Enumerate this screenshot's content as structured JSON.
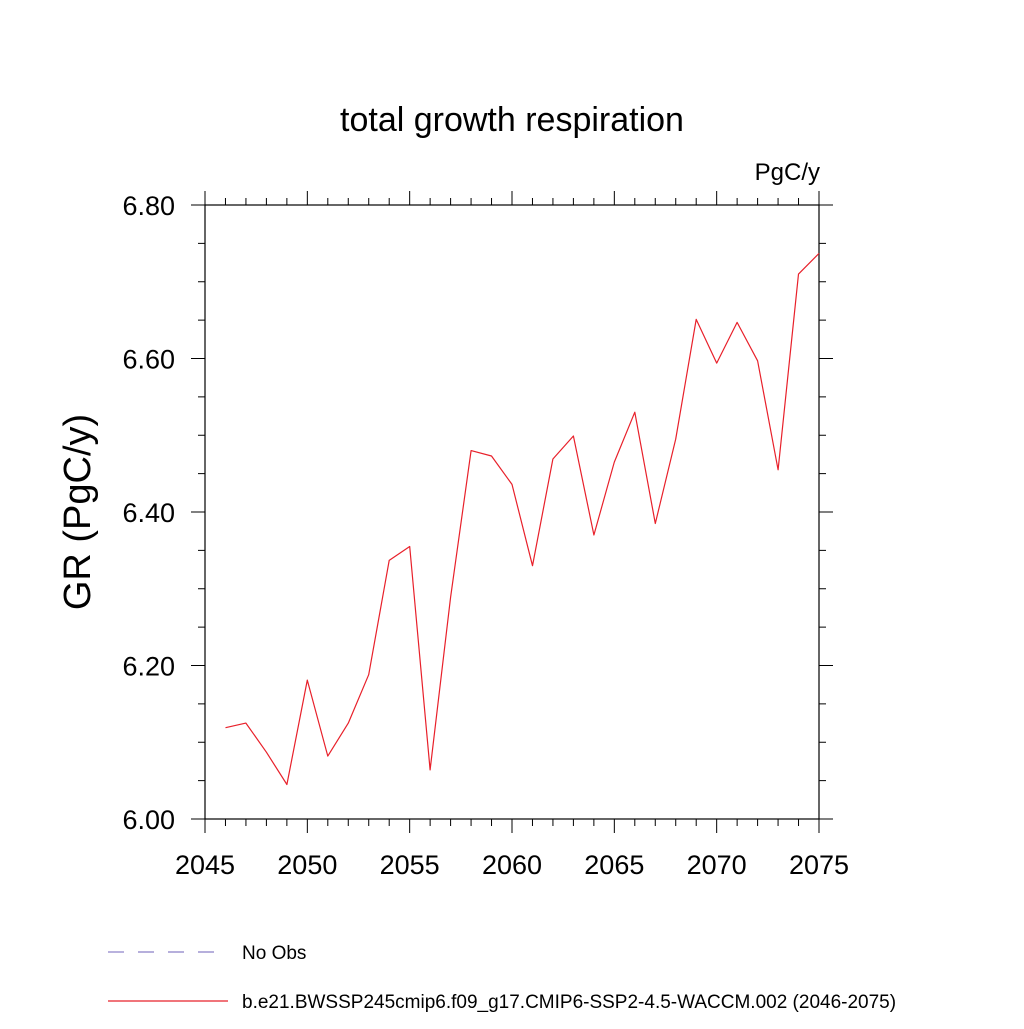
{
  "chart_data": {
    "type": "line",
    "title": "total growth respiration",
    "units_label": "PgC/y",
    "ylabel": "GR  (PgC/y)",
    "xlabel": "",
    "xlim": [
      2045,
      2075
    ],
    "ylim": [
      6.0,
      6.8
    ],
    "x_ticks": [
      2045,
      2050,
      2055,
      2060,
      2065,
      2070,
      2075
    ],
    "x_tick_labels": [
      "2045",
      "2050",
      "2055",
      "2060",
      "2065",
      "2070",
      "2075"
    ],
    "y_ticks": [
      6.0,
      6.2,
      6.4,
      6.6,
      6.8
    ],
    "y_tick_labels": [
      "6.00",
      "6.20",
      "6.40",
      "6.60",
      "6.80"
    ],
    "grid": false,
    "legend_position": "bottom",
    "legend": [
      {
        "label": "No Obs",
        "color": "#8a7fc8",
        "style": "dashed"
      },
      {
        "label": "b.e21.BWSSP245cmip6.f09_g17.CMIP6-SSP2-4.5-WACCM.002 (2046-2075)",
        "color": "#e8202a",
        "style": "solid"
      }
    ],
    "series": [
      {
        "name": "b.e21.BWSSP245cmip6.f09_g17.CMIP6-SSP2-4.5-WACCM.002 (2046-2075)",
        "color": "#e8202a",
        "x": [
          2046,
          2047,
          2048,
          2049,
          2050,
          2051,
          2052,
          2053,
          2054,
          2055,
          2056,
          2057,
          2058,
          2059,
          2060,
          2061,
          2062,
          2063,
          2064,
          2065,
          2066,
          2067,
          2068,
          2069,
          2070,
          2071,
          2072,
          2073,
          2074,
          2075
        ],
        "y": [
          6.119,
          6.125,
          6.087,
          6.045,
          6.181,
          6.082,
          6.125,
          6.188,
          6.337,
          6.355,
          6.064,
          6.289,
          6.48,
          6.473,
          6.436,
          6.33,
          6.469,
          6.499,
          6.37,
          6.465,
          6.53,
          6.385,
          6.495,
          6.651,
          6.594,
          6.647,
          6.597,
          6.455,
          6.71,
          6.737
        ]
      }
    ]
  }
}
